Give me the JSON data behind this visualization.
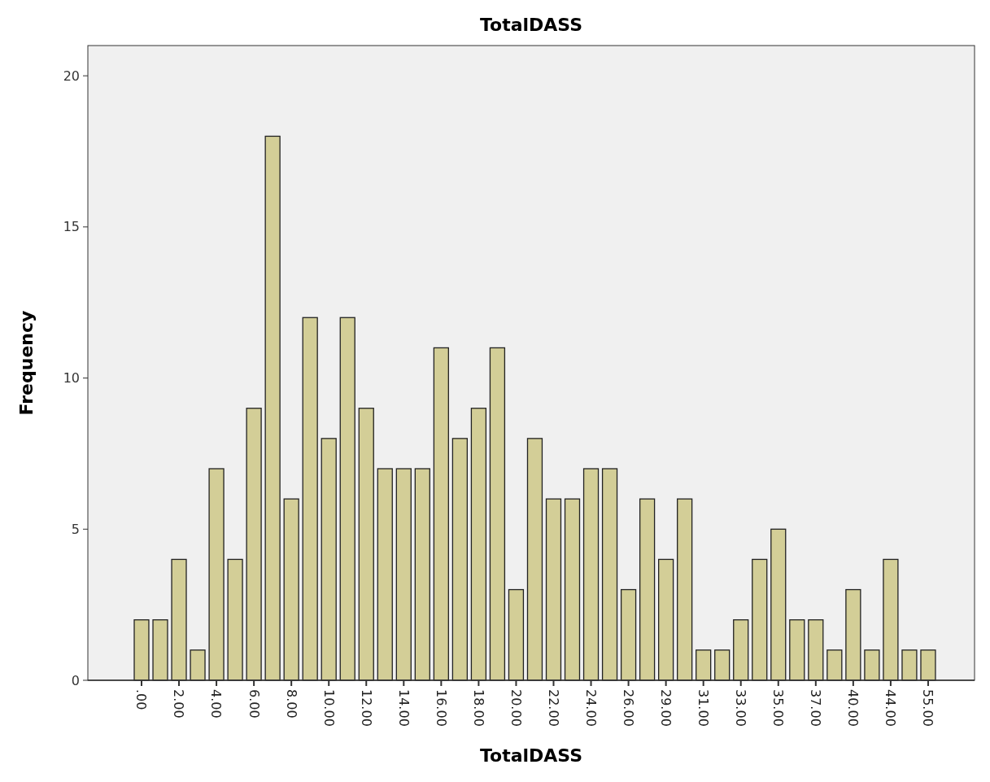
{
  "chart_data": {
    "type": "bar",
    "title": "TotalDASS",
    "xlabel": "TotalDASS",
    "ylabel": "Frequency",
    "categories": [
      ".00",
      null,
      "2.00",
      null,
      "4.00",
      null,
      "6.00",
      null,
      "8.00",
      null,
      "10.00",
      null,
      "12.00",
      null,
      "14.00",
      null,
      "16.00",
      null,
      "18.00",
      null,
      "20.00",
      null,
      "22.00",
      null,
      "24.00",
      null,
      "26.00",
      null,
      "29.00",
      null,
      "31.00",
      null,
      "33.00",
      null,
      "35.00",
      null,
      "37.00",
      null,
      "40.00",
      null,
      "44.00",
      null,
      "55.00"
    ],
    "values": [
      2,
      2,
      4,
      1,
      7,
      4,
      9,
      18,
      6,
      12,
      8,
      12,
      9,
      7,
      7,
      7,
      11,
      8,
      9,
      11,
      3,
      8,
      6,
      6,
      7,
      7,
      3,
      6,
      4,
      6,
      1,
      1,
      2,
      4,
      5,
      2,
      2,
      1,
      3,
      1,
      4,
      1,
      1
    ],
    "color": "#d3ce97",
    "ylim": [
      0,
      21
    ],
    "yticks": [
      0,
      5,
      10,
      15,
      20
    ],
    "grid": false
  }
}
